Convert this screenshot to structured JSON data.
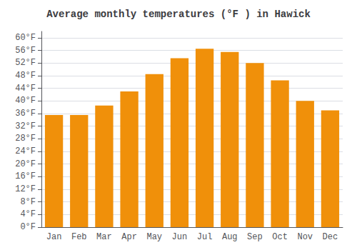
{
  "chart_data": {
    "type": "bar",
    "title": "Average monthly temperatures (°F ) in Hawick",
    "categories": [
      "Jan",
      "Feb",
      "Mar",
      "Apr",
      "May",
      "Jun",
      "Jul",
      "Aug",
      "Sep",
      "Oct",
      "Nov",
      "Dec"
    ],
    "values": [
      35.5,
      35.5,
      38.5,
      43.0,
      48.5,
      53.5,
      56.5,
      55.5,
      52.0,
      46.5,
      40.0,
      37.0
    ],
    "color": "#F0900A",
    "ylim": [
      0,
      62
    ],
    "yticks": [
      {
        "value": 0,
        "label": "0°F"
      },
      {
        "value": 4,
        "label": "4°F"
      },
      {
        "value": 8,
        "label": "8°F"
      },
      {
        "value": 12,
        "label": "12°F"
      },
      {
        "value": 16,
        "label": "16°F"
      },
      {
        "value": 20,
        "label": "20°F"
      },
      {
        "value": 24,
        "label": "24°F"
      },
      {
        "value": 28,
        "label": "28°F"
      },
      {
        "value": 32,
        "label": "32°F"
      },
      {
        "value": 36,
        "label": "36°F"
      },
      {
        "value": 40,
        "label": "40°F"
      },
      {
        "value": 44,
        "label": "44°F"
      },
      {
        "value": 48,
        "label": "48°F"
      },
      {
        "value": 52,
        "label": "52°F"
      },
      {
        "value": 56,
        "label": "56°F"
      },
      {
        "value": 60,
        "label": "60°F"
      }
    ],
    "grid": true
  }
}
